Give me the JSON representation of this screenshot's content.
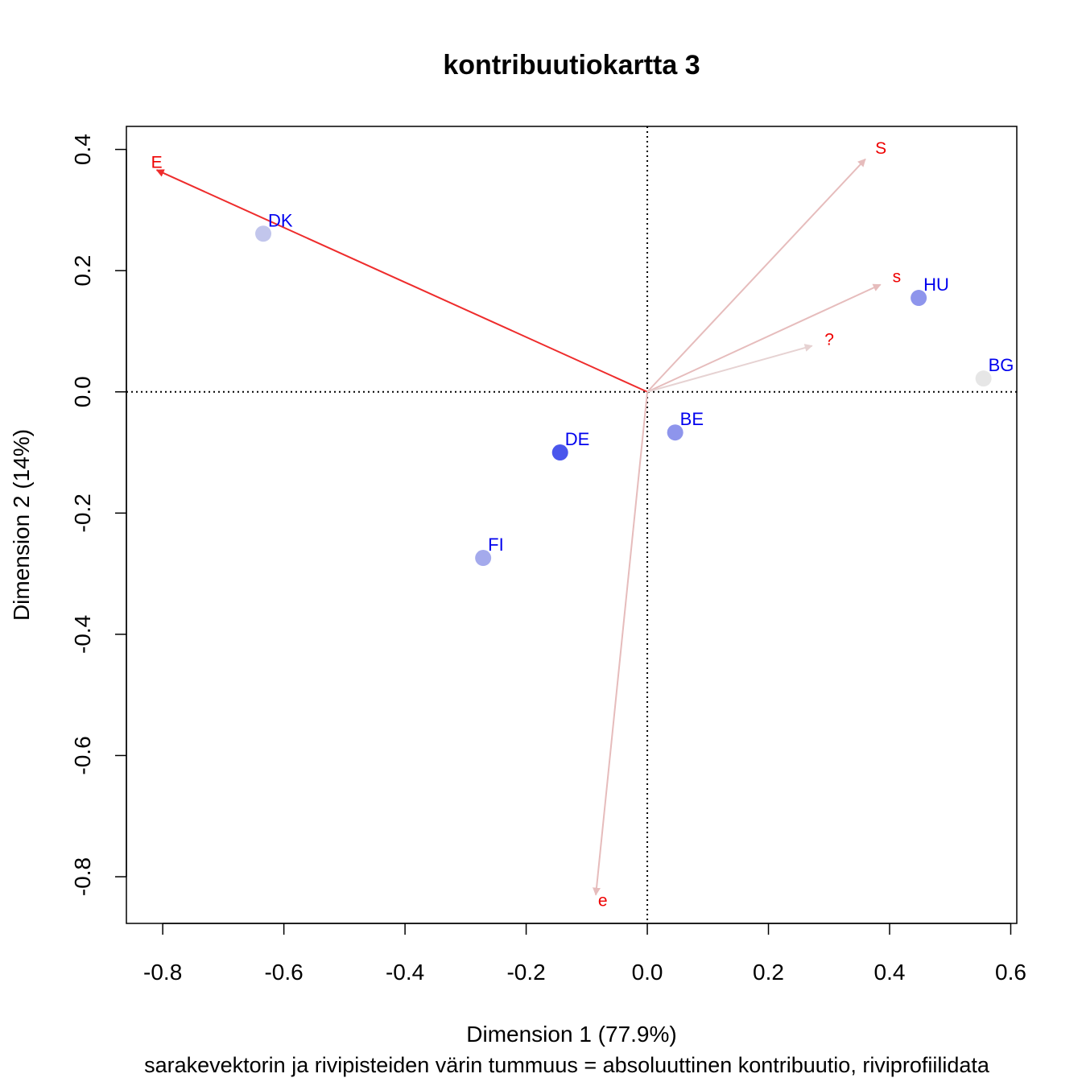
{
  "chart_data": {
    "type": "scatter",
    "title": "kontribuutiokartta 3",
    "xlabel": "Dimension 1 (77.9%)",
    "ylabel": "Dimension 2 (14%)",
    "subtitle": "sarakevektorin ja rivipisteiden värin tummuus = absoluuttinen kontribuutio, riviprofiilidata",
    "xlim": [
      -0.86,
      0.61
    ],
    "ylim": [
      -0.877,
      0.438
    ],
    "x_ticks": [
      -0.8,
      -0.6,
      -0.4,
      -0.2,
      0.0,
      0.2,
      0.4,
      0.6
    ],
    "y_ticks": [
      -0.8,
      -0.6,
      -0.4,
      -0.2,
      0.0,
      0.2,
      0.4
    ],
    "x_tick_labels": [
      "-0.8",
      "-0.6",
      "-0.4",
      "-0.2",
      "0.0",
      "0.2",
      "0.4",
      "0.6"
    ],
    "y_tick_labels": [
      "-0.8",
      "-0.6",
      "-0.4",
      "-0.2",
      "0.0",
      "0.2",
      "0.4"
    ],
    "reference_lines": {
      "x": 0,
      "y": 0,
      "style": "dotted"
    },
    "grid": false,
    "row_points": [
      {
        "label": "DK",
        "x": -0.634,
        "y": 0.261,
        "color": "#c2c6ec"
      },
      {
        "label": "HU",
        "x": 0.448,
        "y": 0.155,
        "color": "#8e95ec"
      },
      {
        "label": "BG",
        "x": 0.555,
        "y": 0.022,
        "color": "#e6e6e6"
      },
      {
        "label": "BE",
        "x": 0.046,
        "y": -0.067,
        "color": "#8e95ec"
      },
      {
        "label": "DE",
        "x": -0.144,
        "y": -0.1,
        "color": "#4a56ec"
      },
      {
        "label": "FI",
        "x": -0.271,
        "y": -0.274,
        "color": "#a4aaec"
      }
    ],
    "column_vectors": [
      {
        "label": "E",
        "x": -0.81,
        "y": 0.366,
        "color": "#ee2c2c"
      },
      {
        "label": "S",
        "x": 0.36,
        "y": 0.384,
        "color": "#e6bcbc"
      },
      {
        "label": "s",
        "x": 0.385,
        "y": 0.177,
        "color": "#e6bcbc"
      },
      {
        "label": "?",
        "x": 0.272,
        "y": 0.076,
        "color": "#e6d2d2"
      },
      {
        "label": "e",
        "x": -0.085,
        "y": -0.83,
        "color": "#e6bcbc"
      }
    ]
  }
}
